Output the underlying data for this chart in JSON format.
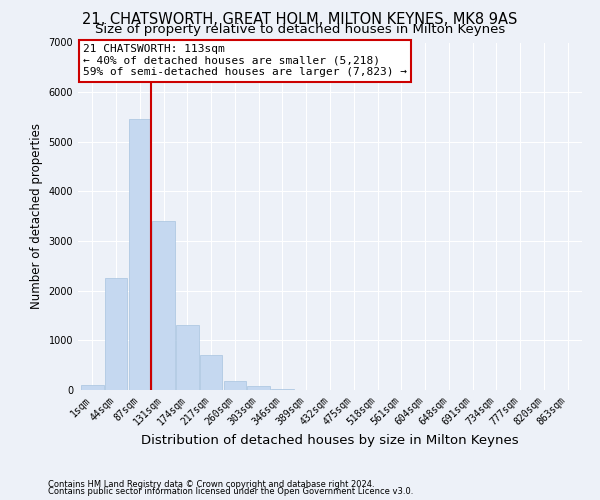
{
  "title1": "21, CHATSWORTH, GREAT HOLM, MILTON KEYNES, MK8 9AS",
  "title2": "Size of property relative to detached houses in Milton Keynes",
  "xlabel": "Distribution of detached houses by size in Milton Keynes",
  "ylabel": "Number of detached properties",
  "bar_color": "#c5d8f0",
  "bar_edge_color": "#a8c4e0",
  "categories": [
    "1sqm",
    "44sqm",
    "87sqm",
    "131sqm",
    "174sqm",
    "217sqm",
    "260sqm",
    "303sqm",
    "346sqm",
    "389sqm",
    "432sqm",
    "475sqm",
    "518sqm",
    "561sqm",
    "604sqm",
    "648sqm",
    "691sqm",
    "734sqm",
    "777sqm",
    "820sqm",
    "863sqm"
  ],
  "values": [
    100,
    2250,
    5450,
    3400,
    1300,
    700,
    175,
    75,
    25,
    10,
    2,
    0,
    0,
    0,
    0,
    0,
    0,
    0,
    0,
    0,
    0
  ],
  "ylim": [
    0,
    7000
  ],
  "yticks": [
    0,
    1000,
    2000,
    3000,
    4000,
    5000,
    6000,
    7000
  ],
  "vline_color": "#cc0000",
  "vline_x_index": 2,
  "annotation_text": "21 CHATSWORTH: 113sqm\n← 40% of detached houses are smaller (5,218)\n59% of semi-detached houses are larger (7,823) →",
  "footer1": "Contains HM Land Registry data © Crown copyright and database right 2024.",
  "footer2": "Contains public sector information licensed under the Open Government Licence v3.0.",
  "background_color": "#edf1f8",
  "plot_background_color": "#edf1f8",
  "grid_color": "#ffffff",
  "title_fontsize": 10.5,
  "subtitle_fontsize": 9.5,
  "tick_fontsize": 7,
  "ylabel_fontsize": 8.5,
  "xlabel_fontsize": 9.5,
  "annotation_fontsize": 8,
  "footer_fontsize": 6
}
